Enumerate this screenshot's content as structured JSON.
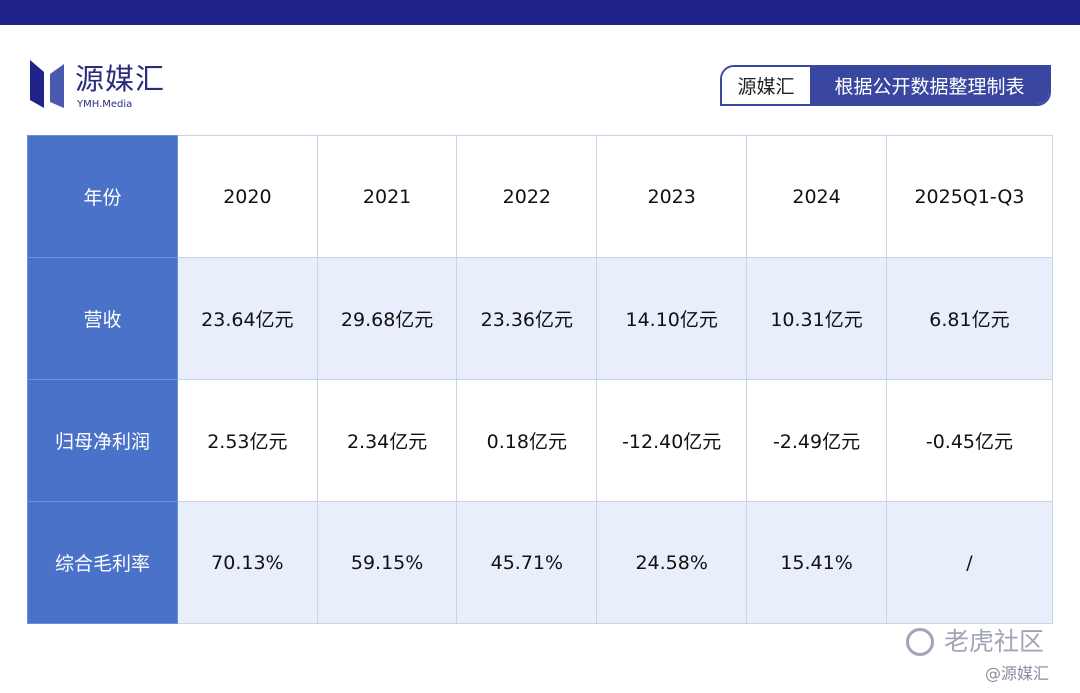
{
  "header": {
    "logo_text": "源媒汇",
    "logo_sub": "YMH.Media",
    "badge_brand": "源媒汇",
    "badge_text": "根据公开数据整理制表",
    "brand_color": "#20248a"
  },
  "table": {
    "rows": [
      {
        "label": "年份",
        "values": [
          "2020",
          "2021",
          "2022",
          "2023",
          "2024",
          "2025Q1-Q3"
        ]
      },
      {
        "label": "营收",
        "values": [
          "23.64亿元",
          "29.68亿元",
          "23.36亿元",
          "14.10亿元",
          "10.31亿元",
          "6.81亿元"
        ]
      },
      {
        "label": "归母净利润",
        "values": [
          "2.53亿元",
          "2.34亿元",
          "0.18亿元",
          "-12.40亿元",
          "-2.49亿元",
          "-0.45亿元"
        ]
      },
      {
        "label": "综合毛利率",
        "values": [
          "70.13%",
          "59.15%",
          "45.71%",
          "24.58%",
          "15.41%",
          "/"
        ]
      }
    ]
  },
  "watermark": {
    "text": "老虎社区",
    "credit": "@源媒汇"
  }
}
